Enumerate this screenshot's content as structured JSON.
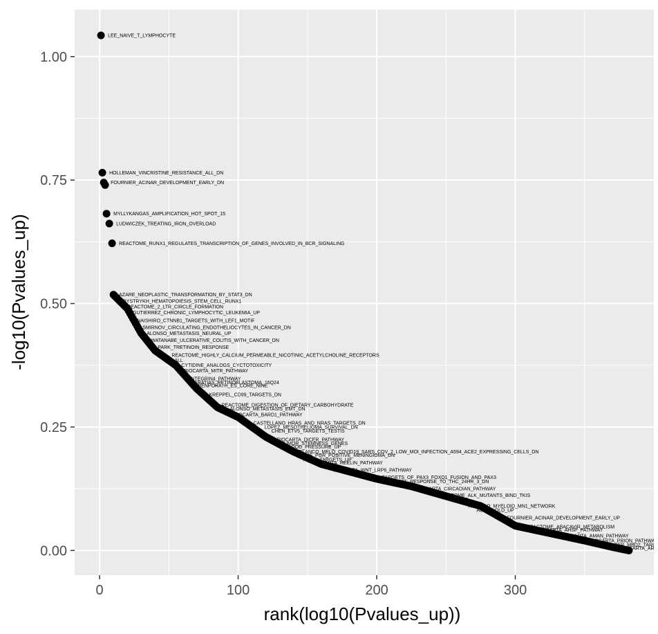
{
  "chart_data": {
    "type": "scatter",
    "xlabel": "rank(log10(Pvalues_up))",
    "ylabel": "-log10(Pvalues_up)",
    "xlim": [
      -18,
      400
    ],
    "ylim": [
      -0.05,
      1.095
    ],
    "x_ticks": [
      0,
      100,
      200,
      300
    ],
    "x_tick_labels": [
      "0",
      "100",
      "200",
      "300"
    ],
    "y_ticks": [
      0,
      0.25,
      0.5,
      0.75,
      1.0
    ],
    "y_tick_labels": [
      "0.00",
      "0.25",
      "0.50",
      "0.75",
      "1.00"
    ],
    "grid": true,
    "colors": {
      "panel": "#ebebeb",
      "grid": "#ffffff",
      "points": "#000000",
      "tick": "#4d4d4d"
    },
    "curve": {
      "x_range": [
        10,
        382
      ],
      "anchors": [
        [
          10,
          0.518
        ],
        [
          20,
          0.49
        ],
        [
          30,
          0.44
        ],
        [
          40,
          0.405
        ],
        [
          55,
          0.375
        ],
        [
          70,
          0.328
        ],
        [
          85,
          0.29
        ],
        [
          100,
          0.27
        ],
        [
          120,
          0.23
        ],
        [
          140,
          0.2
        ],
        [
          160,
          0.175
        ],
        [
          180,
          0.16
        ],
        [
          200,
          0.145
        ],
        [
          225,
          0.13
        ],
        [
          250,
          0.11
        ],
        [
          275,
          0.09
        ],
        [
          300,
          0.05
        ],
        [
          325,
          0.035
        ],
        [
          350,
          0.02
        ],
        [
          370,
          0.007
        ],
        [
          382,
          0.0
        ]
      ]
    },
    "points": [
      {
        "x": 1,
        "y": 1.043,
        "label": "LEE_NAIVE_T_LYMPHOCYTE"
      },
      {
        "x": 2,
        "y": 0.765,
        "label": "HOLLEMAN_VINCRISTINE_RESISTANCE_ALL_DN"
      },
      {
        "x": 3,
        "y": 0.745,
        "label": "FOURNIER_ACINAR_DEVELOPMENT_EARLY_DN"
      },
      {
        "x": 4,
        "y": 0.74,
        "label": ""
      },
      {
        "x": 5,
        "y": 0.682,
        "label": "MYLLYKANGAS_AMPLIFICATION_HOT_SPOT_15"
      },
      {
        "x": 7,
        "y": 0.662,
        "label": "LUDWICZEK_TREATING_IRON_OVERLOAD"
      },
      {
        "x": 9,
        "y": 0.622,
        "label": "REACTOME_RUNX1_REGULATES_TRANSCRIPTION_OF_GENES_INVOLVED_IN_BCR_SIGNALING"
      }
    ],
    "curve_labels": [
      {
        "x": 10,
        "y": 0.518,
        "label": "AZARE_NEOPLASTIC_TRANSFORMATION_BY_STAT3_DN"
      },
      {
        "x": 13,
        "y": 0.505,
        "label": "BYSTRYKH_HEMATOPOIESIS_STEM_CELL_RUNX1"
      },
      {
        "x": 16,
        "y": 0.494,
        "label": "REACTOME_2_LTR_CIRCLE_FORMATION"
      },
      {
        "x": 20,
        "y": 0.482,
        "label": "GUTIERREZ_CHRONIC_LYMPHOCYTIC_LEUKEMIA_UP"
      },
      {
        "x": 23,
        "y": 0.466,
        "label": "NAISHIRO_CTNNB1_TARGETS_WITH_LEF1_MOTIF"
      },
      {
        "x": 27,
        "y": 0.452,
        "label": "SMIRNOV_CIRCULATING_ENDOTHELIOCYTES_IN_CANCER_DN"
      },
      {
        "x": 30,
        "y": 0.44,
        "label": "ALONSO_METASTASIS_NEURAL_UP"
      },
      {
        "x": 33,
        "y": 0.426,
        "label": "WATANABE_ULCERATIVE_COLITIS_WITH_CANCER_DN"
      },
      {
        "x": 38,
        "y": 0.412,
        "label": "PARK_TRETINOIN_RESPONSE"
      },
      {
        "x": 48,
        "y": 0.396,
        "label": "REACTOME_HIGHLY_CALCIUM_PERMEABLE_NICOTINIC_ACETYLCHOLINE_RECEPTORS"
      },
      {
        "x": 50,
        "y": 0.385,
        "label": "ALL"
      },
      {
        "x": 55,
        "y": 0.375,
        "label": "CYTIDINE_ANALOGS_CYCTOTOXICITY"
      },
      {
        "x": 57,
        "y": 0.364,
        "label": "BIOCARTA_MITR_PATHWAY"
      },
      {
        "x": 61,
        "y": 0.348,
        "label": "INTEGRIN4_PATHWAY"
      },
      {
        "x": 64,
        "y": 0.34,
        "label": "GRATIAS_RETINOBLASTOMA_16Q24"
      },
      {
        "x": 67,
        "y": 0.334,
        "label": "BENPORATH_ES_CORE_NINE"
      },
      {
        "x": 75,
        "y": 0.316,
        "label": "KREPPEL_CD99_TARGETS_DN"
      },
      {
        "x": 84,
        "y": 0.295,
        "label": "REACTOME_DIGESTION_OF_DIETARY_CARBOHYDRATE"
      },
      {
        "x": 90,
        "y": 0.287,
        "label": "ALONSO_METASTASIS_EMT_DN"
      },
      {
        "x": 93,
        "y": 0.275,
        "label": "BIOCARTA_BARD1_PATHWAY"
      },
      {
        "x": 107,
        "y": 0.258,
        "label": "CASTELLANO_HRAS_AND_NRAS_TARGETS_DN"
      },
      {
        "x": 115,
        "y": 0.25,
        "label": "LOPEZ_MESOTHELIOMA_SURVIVAL_DN"
      },
      {
        "x": 120,
        "y": 0.242,
        "label": "CHEN_ETV5_TARGETS_TESTIS"
      },
      {
        "x": 124,
        "y": 0.225,
        "label": "BIOCARTA_DICER_PATHWAY"
      },
      {
        "x": 127,
        "y": 0.217,
        "label": "TUMOR_STEMNESS_GENES"
      },
      {
        "x": 130,
        "y": 0.21,
        "label": "BLOOD_PRESSURE_UP"
      },
      {
        "x": 140,
        "y": 0.2,
        "label": "BLANCO_MELO_COVID19_SARS_COV_2_LOW_MOI_INFECTION_A594_ACE2_EXPRESSING_CELLS_DN"
      },
      {
        "x": 138,
        "y": 0.193,
        "label": "CLAUS_PGR_POSITIVE_MENINGIOMA_DN"
      },
      {
        "x": 143,
        "y": 0.184,
        "label": "HIF1A_TARGETS_UP"
      },
      {
        "x": 150,
        "y": 0.178,
        "label": "BIOCARTA_REELIN_PATHWAY"
      },
      {
        "x": 165,
        "y": 0.163,
        "label": "BIOCARTA_WNT_LRP6_PATHWAY"
      },
      {
        "x": 185,
        "y": 0.148,
        "label": "BEGUM_TARGETS_OF_PAX3_FOXO1_FUSION_AND_PAX3"
      },
      {
        "x": 200,
        "y": 0.14,
        "label": "CAFFAREL_RESPONSE_TO_THC_24HR_3_DN"
      },
      {
        "x": 225,
        "y": 0.125,
        "label": "BIOCARTA_CIRCADIAN_PATHWAY"
      },
      {
        "x": 240,
        "y": 0.112,
        "label": "REACTOME_ALK_MUTANTS_BIND_TKIS"
      },
      {
        "x": 262,
        "y": 0.09,
        "label": "AMIKUBO_MYELOID_MN1_NETWORK"
      },
      {
        "x": 268,
        "y": 0.082,
        "label": "AGING_OLD_UP"
      },
      {
        "x": 290,
        "y": 0.066,
        "label": "FOURNIER_ACINAR_DEVELOPMENT_EARLY_UP"
      },
      {
        "x": 304,
        "y": 0.048,
        "label": "REACTOME_ABACAVIR_METABOLISM"
      },
      {
        "x": 312,
        "y": 0.042,
        "label": "BIOCARTA_AHSP_PATHWAY"
      },
      {
        "x": 330,
        "y": 0.03,
        "label": "BIOCARTA_AMAN_PATHWAY"
      },
      {
        "x": 350,
        "y": 0.02,
        "label": "BIOCARTA_PRION_PATHWAY"
      },
      {
        "x": 360,
        "y": 0.012,
        "label": "BERGER_MBD2_TARGETS"
      },
      {
        "x": 372,
        "y": 0.005,
        "label": "BIOCARTA_ARAP_PATHWAY"
      }
    ]
  }
}
